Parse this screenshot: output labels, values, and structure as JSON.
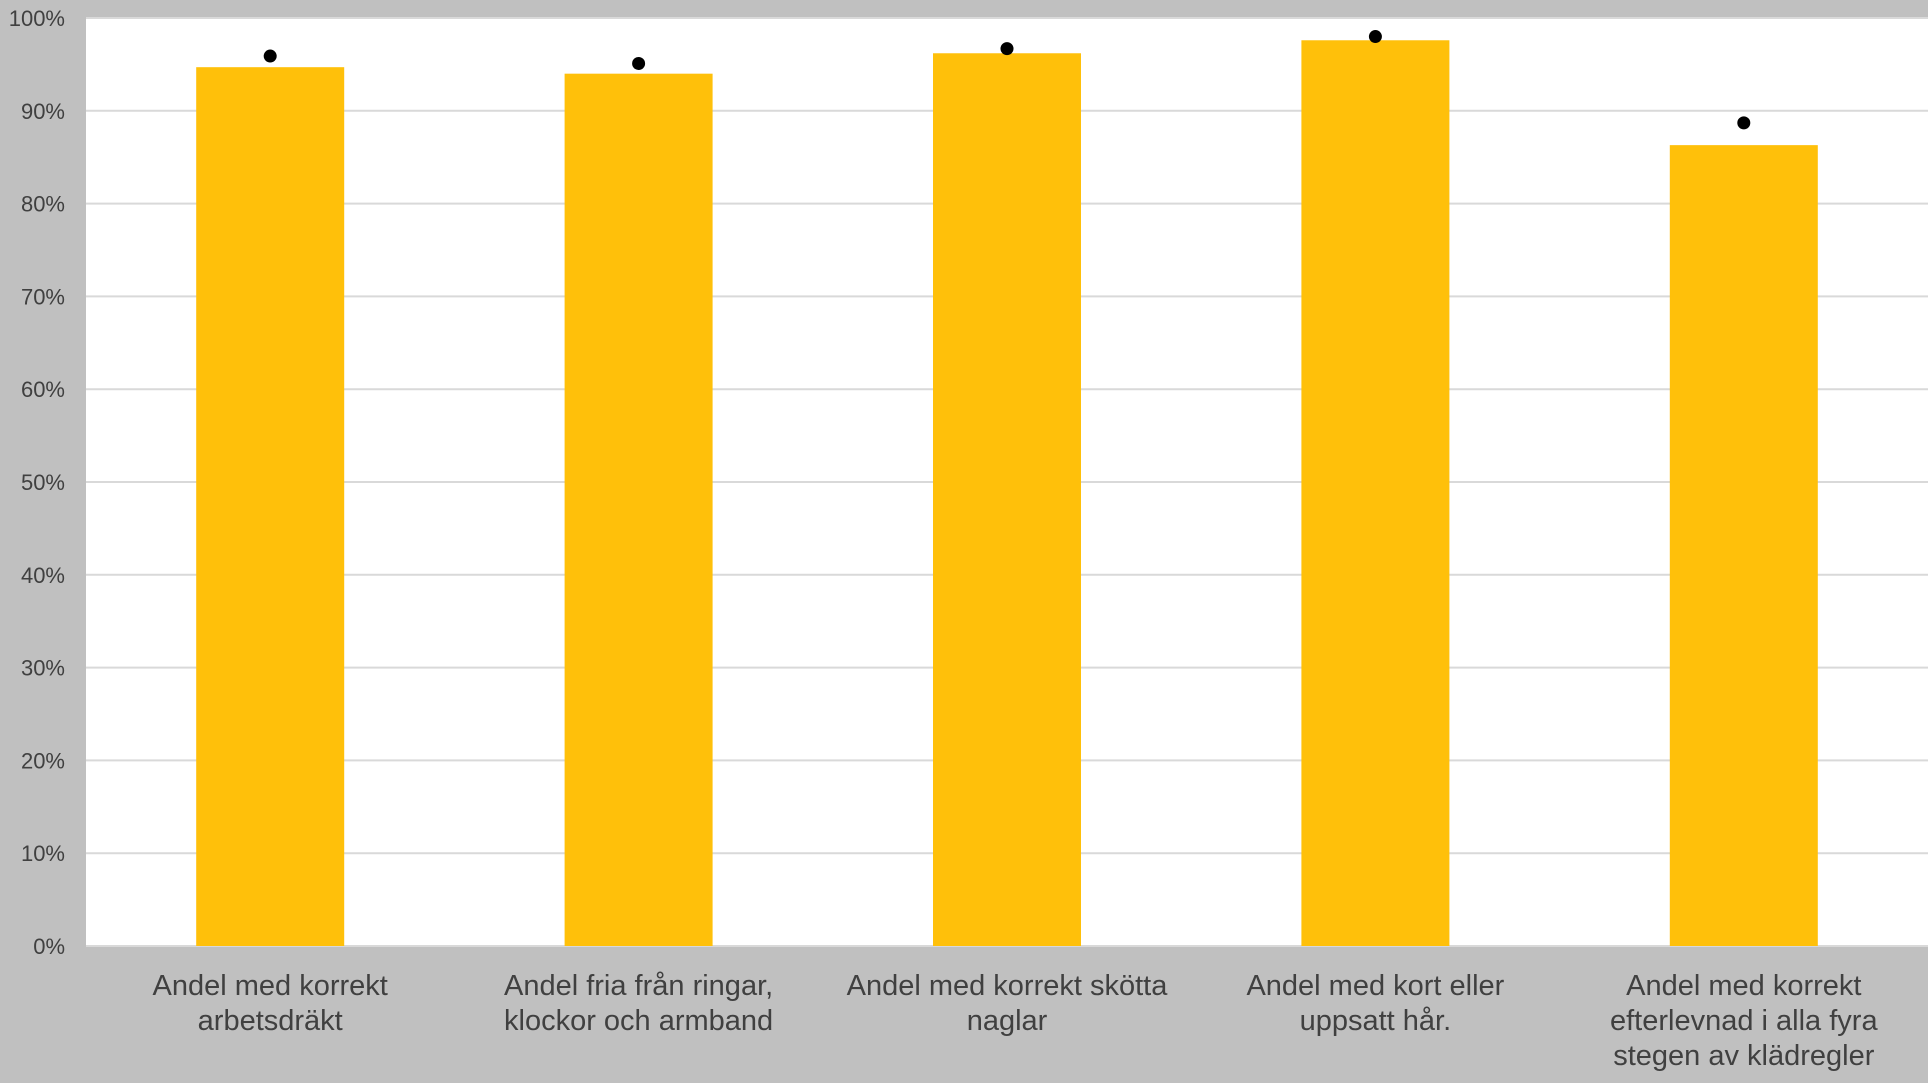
{
  "chart_data": {
    "type": "bar",
    "title": "",
    "xlabel": "",
    "ylabel": "",
    "ylim": [
      0,
      1
    ],
    "yticks": [
      "0%",
      "10%",
      "20%",
      "30%",
      "40%",
      "50%",
      "60%",
      "70%",
      "80%",
      "90%",
      "100%"
    ],
    "grid": true,
    "legend": "none",
    "categories": [
      [
        "Andel med korrekt",
        "arbetsdräkt"
      ],
      [
        "Andel fria från ringar,",
        "klockor och armband"
      ],
      [
        "Andel med korrekt skötta",
        "naglar"
      ],
      [
        "Andel med kort eller",
        "uppsatt hår."
      ],
      [
        "Andel med korrekt",
        "efterlevnad i alla fyra",
        "stegen av klädregler"
      ]
    ],
    "series": [
      {
        "type": "bar",
        "values": [
          0.947,
          0.94,
          0.962,
          0.976,
          0.863
        ],
        "color": "#ffc00a"
      },
      {
        "type": "dot",
        "values": [
          0.959,
          0.951,
          0.967,
          0.98,
          0.887
        ],
        "color": "#000000"
      }
    ],
    "colors": {
      "background": "#c0c0c0",
      "plot_background": "#ffffff",
      "grid": "#d9d9d9",
      "tick_text": "#404040",
      "category_text": "#404040"
    }
  }
}
